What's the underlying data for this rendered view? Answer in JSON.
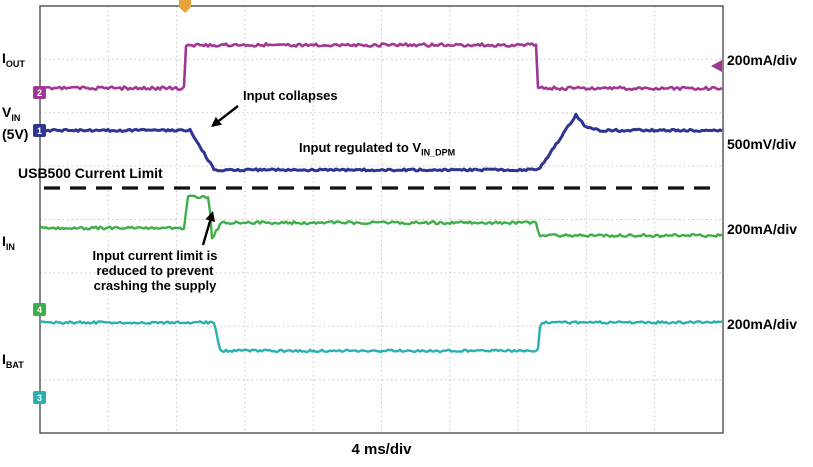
{
  "figure": {
    "bottom_label": "4 ms/div",
    "channels": [
      {
        "id": "iout",
        "label_main": "I",
        "label_sub": "OUT",
        "scale": "200mA/div",
        "color": "#a13795",
        "marker": "2"
      },
      {
        "id": "vin",
        "label_main": "V",
        "label_sub": "IN",
        "label_extra": "(5V)",
        "scale": "500mV/div",
        "color": "#2f3590",
        "marker": "1"
      },
      {
        "id": "iin",
        "label_main": "I",
        "label_sub": "IN",
        "scale": "200mA/div",
        "color": "#3fae49",
        "marker": "4"
      },
      {
        "id": "ibat",
        "label_main": "I",
        "label_sub": "BAT",
        "scale": "200mA/div",
        "color": "#29b0b0",
        "marker": "3"
      }
    ],
    "annotations": {
      "input_collapses": "Input collapses",
      "regulated_pre": "Input regulated to V",
      "regulated_sub": "IN_DPM",
      "usb500": "USB500 Current Limit",
      "ilim_line1": "Input current limit is",
      "ilim_line2": "reduced to prevent",
      "ilim_line3": "crashing the supply"
    }
  },
  "chart_data": {
    "type": "line",
    "title": "",
    "xlabel": "4 ms/div",
    "x_unit": "ms",
    "x_range": [
      0,
      40
    ],
    "x_divisions": 10,
    "y_divisions": 8,
    "y_unit": "grid divisions from top of screen",
    "grid": true,
    "limit_line": {
      "label": "USB500 Current Limit",
      "y_div": 3.41,
      "style": "dashed",
      "color": "#111111"
    },
    "series": [
      {
        "name": "I_OUT",
        "scale": "200mA/div",
        "color": "#a13795",
        "width": 2.6,
        "noise": 1.6,
        "points": [
          [
            0,
            1.54
          ],
          [
            8.45,
            1.54
          ],
          [
            8.55,
            0.73
          ],
          [
            29.05,
            0.73
          ],
          [
            29.15,
            1.54
          ],
          [
            40,
            1.54
          ]
        ]
      },
      {
        "name": "V_IN (5V)",
        "scale": "500mV/div",
        "color": "#2f3590",
        "width": 3.0,
        "noise": 1.1,
        "points": [
          [
            0,
            2.33
          ],
          [
            8.8,
            2.33
          ],
          [
            10.2,
            3.07
          ],
          [
            29.2,
            3.07
          ],
          [
            31.4,
            2.04
          ],
          [
            31.9,
            2.25
          ],
          [
            32.7,
            2.33
          ],
          [
            40,
            2.33
          ]
        ]
      },
      {
        "name": "I_IN",
        "scale": "200mA/div",
        "color": "#3fae49",
        "width": 2.4,
        "noise": 1.4,
        "points": [
          [
            0,
            4.16
          ],
          [
            8.5,
            4.16
          ],
          [
            8.6,
            3.58
          ],
          [
            9.9,
            3.58
          ],
          [
            10.05,
            4.36
          ],
          [
            10.6,
            4.06
          ],
          [
            29.1,
            4.06
          ],
          [
            29.2,
            4.3
          ],
          [
            40,
            4.3
          ]
        ]
      },
      {
        "name": "I_BAT",
        "scale": "200mA/div",
        "color": "#29b0b0",
        "width": 2.4,
        "noise": 1.2,
        "points": [
          [
            0,
            5.93
          ],
          [
            10.2,
            5.93
          ],
          [
            10.55,
            6.46
          ],
          [
            29.15,
            6.46
          ],
          [
            29.3,
            5.93
          ],
          [
            40,
            5.93
          ]
        ]
      }
    ],
    "arrows": [
      {
        "from": [
          238,
          106
        ],
        "to": [
          211,
          127
        ]
      },
      {
        "from": [
          203,
          245
        ],
        "to": [
          213,
          211
        ]
      }
    ],
    "trigger_marker_t_ms": 8.5
  }
}
